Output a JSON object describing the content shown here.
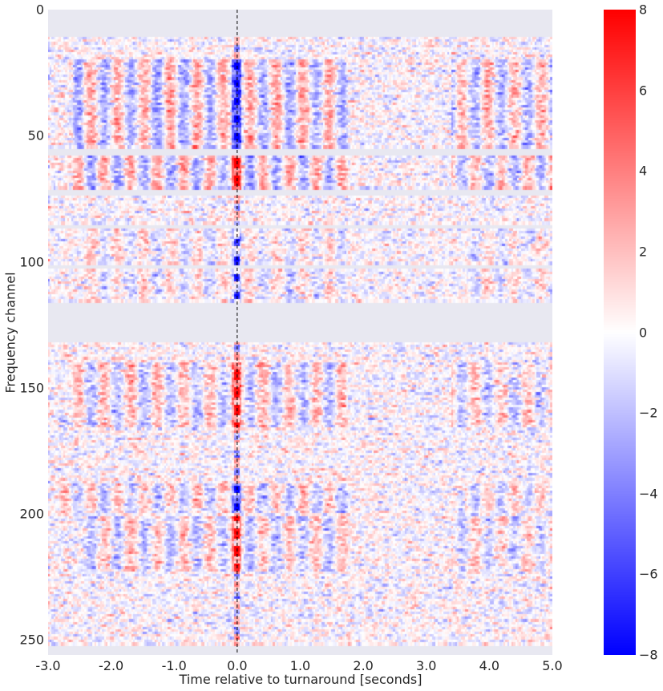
{
  "chart_data": {
    "type": "heatmap",
    "title": "",
    "xlabel": "Time relative to turnaround [seconds]",
    "ylabel": "Frequency channel",
    "xlim": [
      -3.0,
      5.0
    ],
    "ylim": [
      255,
      0
    ],
    "n_channels": 256,
    "x_ticks": [
      -3.0,
      -2.0,
      -1.0,
      0.0,
      1.0,
      2.0,
      3.0,
      4.0,
      5.0
    ],
    "x_tick_labels": [
      "-3.0",
      "-2.0",
      "-1.0",
      "0.0",
      "1.0",
      "2.0",
      "3.0",
      "4.0",
      "5.0"
    ],
    "y_ticks": [
      0,
      50,
      100,
      150,
      200,
      250
    ],
    "y_tick_labels": [
      "0",
      "50",
      "100",
      "150",
      "200",
      "250"
    ],
    "colormap": "bwr",
    "color_range": [
      -8,
      8
    ],
    "colorbar_ticks": [
      8,
      6,
      4,
      2,
      0,
      -2,
      -4,
      -6,
      -8
    ],
    "colorbar_tick_labels": [
      "8",
      "6",
      "4",
      "2",
      "0",
      "−2",
      "−4",
      "−6",
      "−8"
    ],
    "colors": {
      "min": "#0000ff",
      "mid": "#ffffff",
      "max": "#ff0000",
      "masked": "#E8E8F1"
    },
    "masked_channels": [
      [
        0,
        10
      ],
      [
        55,
        57
      ],
      [
        71,
        73
      ],
      [
        85,
        86
      ],
      [
        101,
        102
      ],
      [
        116,
        131
      ],
      [
        252,
        255
      ]
    ],
    "reference_line": {
      "x": 0.0,
      "style": "dashed",
      "color": "#000000"
    },
    "signal_bands": [
      {
        "channels": [
          20,
          54
        ],
        "strength": 1.0,
        "sign_at_zero": -1,
        "time_extent": [
          -2.6,
          1.8
        ],
        "late_extent": [
          3.4,
          5.0
        ]
      },
      {
        "channels": [
          58,
          70
        ],
        "strength": 1.0,
        "sign_at_zero": 1,
        "time_extent": [
          -2.6,
          1.8
        ],
        "late_extent": [
          3.4,
          5.0
        ]
      },
      {
        "channels": [
          86,
          115
        ],
        "strength": 0.45,
        "sign_at_zero": -1,
        "time_extent": [
          -2.4,
          1.8
        ],
        "late_extent": [
          3.6,
          5.0
        ]
      },
      {
        "channels": [
          140,
          165
        ],
        "strength": 0.8,
        "sign_at_zero": 1,
        "time_extent": [
          -2.6,
          1.8
        ],
        "late_extent": [
          3.4,
          5.0
        ]
      },
      {
        "channels": [
          188,
          200
        ],
        "strength": 0.75,
        "sign_at_zero": -1,
        "time_extent": [
          -2.8,
          1.8
        ],
        "late_extent": [
          3.6,
          5.0
        ]
      },
      {
        "channels": [
          200,
          222
        ],
        "strength": 0.75,
        "sign_at_zero": 1,
        "time_extent": [
          -2.4,
          1.8
        ],
        "late_extent": [
          3.4,
          5.0
        ]
      }
    ],
    "oscillation_period_s": 0.42,
    "grid": false
  }
}
